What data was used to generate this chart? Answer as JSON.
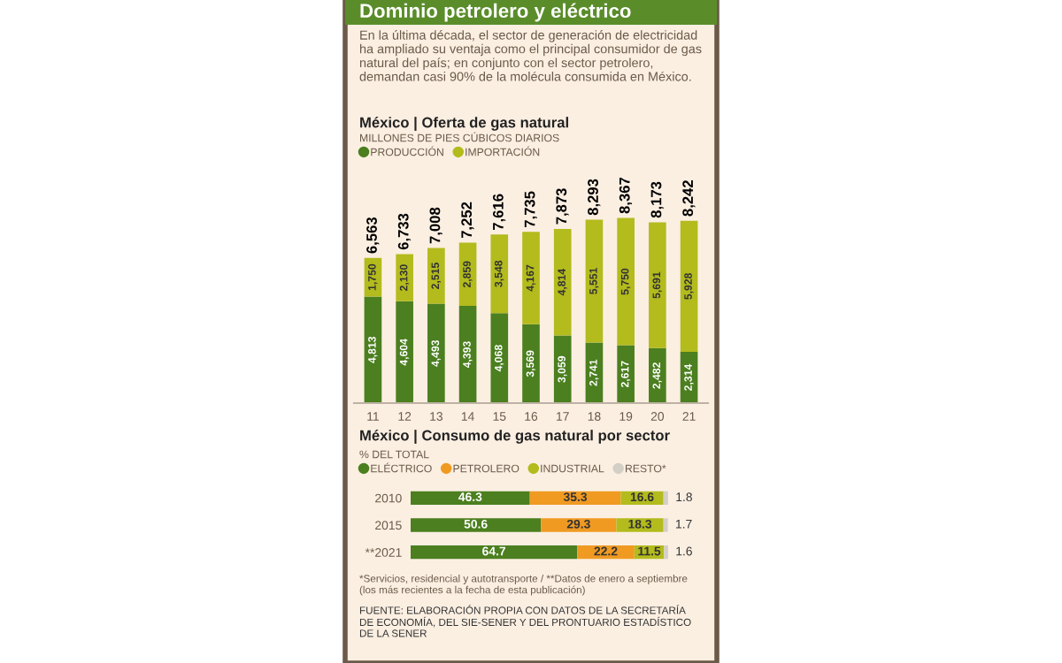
{
  "chart_data": [
    {
      "type": "bar",
      "stacked": true,
      "title": "México | Oferta de gas natural",
      "subtitle": "MILLONES DE PIES CÚBICOS DIARIOS",
      "annotations": [
        "Dominio petrolero y eléctrico",
        "En la última década, el sector de generación de electricidad ha ampliado su ventaja como el principal consumidor de gas natural del país; en conjunto con el sector petrolero, demandan casi 90% de la molécula consumida en México."
      ],
      "categories": [
        "11",
        "12",
        "13",
        "14",
        "15",
        "16",
        "17",
        "18",
        "19",
        "20",
        "21"
      ],
      "series": [
        {
          "name": "PRODUCCIÓN",
          "color": "#4b7f1f",
          "values": [
            4813,
            4604,
            4493,
            4393,
            4068,
            3569,
            3059,
            2741,
            2617,
            2482,
            2314
          ],
          "value_labels": [
            "4,813",
            "4,604",
            "4,493",
            "4,393",
            "4,068",
            "3,569",
            "3,059",
            "2,741",
            "2,617",
            "2,482",
            "2,314"
          ]
        },
        {
          "name": "IMPORTACIÓN",
          "color": "#b3bb1d",
          "values": [
            1750,
            2130,
            2515,
            2859,
            3548,
            4167,
            4814,
            5551,
            5750,
            5691,
            5928
          ],
          "value_labels": [
            "1,750",
            "2,130",
            "2,515",
            "2,859",
            "3,548",
            "4,167",
            "4,814",
            "5,551",
            "5,750",
            "5,691",
            "5,928"
          ]
        }
      ],
      "totals": [
        "6,563",
        "6,733",
        "7,008",
        "7,252",
        "7,616",
        "7,735",
        "7,873",
        "8,293",
        "8,367",
        "8,173",
        "8,242"
      ],
      "legend": "top",
      "tick_labels": "x",
      "grid": false
    },
    {
      "type": "bar",
      "stacked": true,
      "orientation": "horizontal",
      "title": "México | Consumo de gas natural por sector",
      "subtitle": "% DEL TOTAL",
      "annotations": [
        "*Servicios, residencial y autotransporte / **Datos de enero a septiembre (los más recientes a la fecha de esta publicación)",
        "FUENTE: ELABORACIÓN PROPIA CON DATOS DE LA SECRETARÍA DE ECONOMÍA, DEL SIE-SENER Y DEL PRONTUARIO ESTADÍSTICO DE LA SENER"
      ],
      "categories": [
        "2010",
        "2015",
        "**2021"
      ],
      "series": [
        {
          "name": "ELÉCTRICO",
          "color": "#4b7f1f",
          "values": [
            46.3,
            50.6,
            64.7
          ]
        },
        {
          "name": "PETROLERO",
          "color": "#f09a22",
          "values": [
            35.3,
            29.3,
            22.2
          ]
        },
        {
          "name": "INDUSTRIAL",
          "color": "#b3bb1d",
          "values": [
            16.6,
            18.3,
            11.5
          ]
        },
        {
          "name": "RESTO*",
          "color": "#d4cfc6",
          "values": [
            1.8,
            1.7,
            1.6
          ]
        }
      ],
      "data_labels": true,
      "legend": "top",
      "tick_labels": "y",
      "grid": false
    }
  ]
}
